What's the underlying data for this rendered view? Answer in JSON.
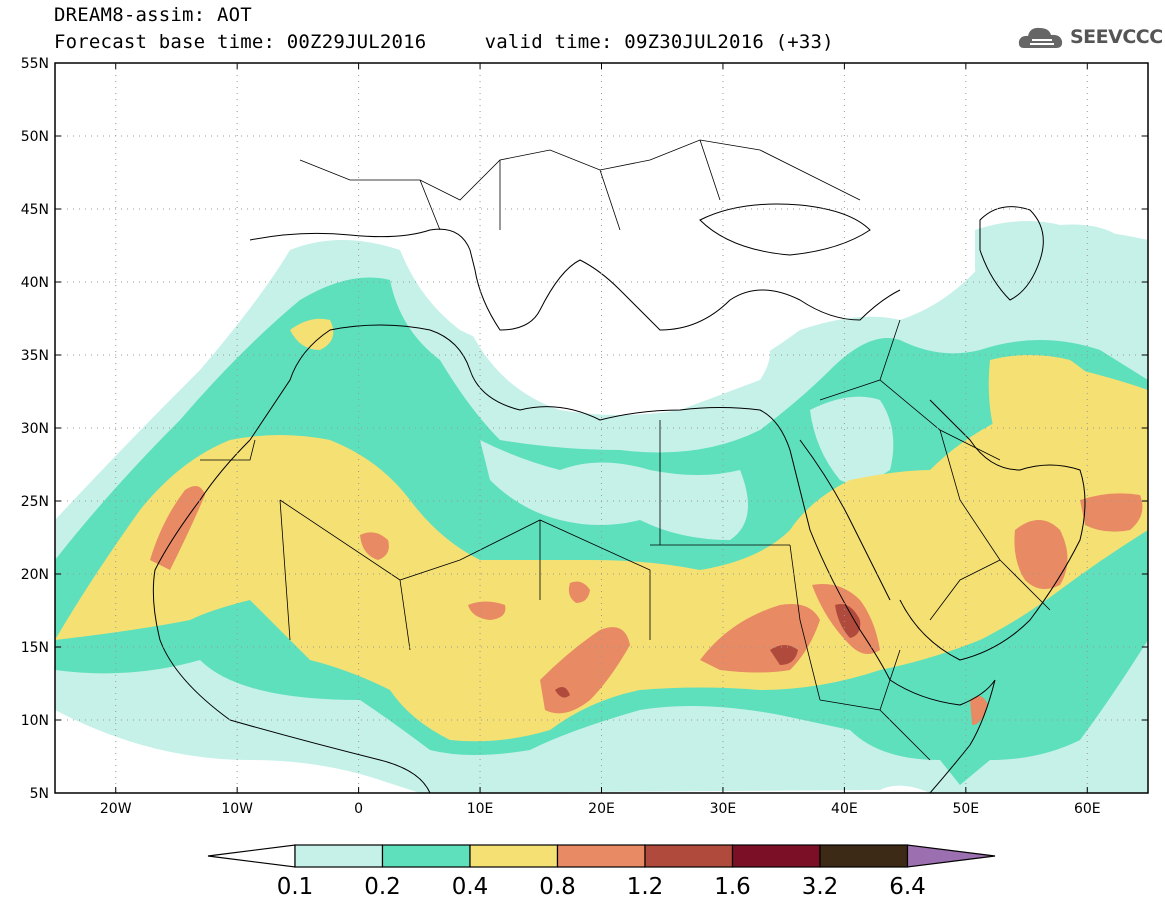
{
  "header": {
    "title": "DREAM8-assim: AOT",
    "forecast_line": "Forecast base time: 00Z29JUL2016     valid time: 09Z30JUL2016 (+33)",
    "logo_text": "SEEVCCC"
  },
  "map": {
    "lon_range": [
      -25,
      65
    ],
    "lat_range": [
      5,
      55
    ],
    "lat_ticks": [
      "55N",
      "50N",
      "45N",
      "40N",
      "35N",
      "30N",
      "25N",
      "20N",
      "15N",
      "10N",
      "5N"
    ],
    "lon_ticks": [
      "20W",
      "10W",
      "0",
      "10E",
      "20E",
      "30E",
      "40E",
      "50E",
      "60E"
    ],
    "background": "#ffffff"
  },
  "legend": {
    "labels": [
      "0.1",
      "0.2",
      "0.4",
      "0.8",
      "1.2",
      "1.6",
      "3.2",
      "6.4"
    ],
    "colors": [
      "#c5f1e8",
      "#5ee0bc",
      "#f5e073",
      "#e88a64",
      "#b04a3c",
      "#7a0f26",
      "#3d2a16",
      "#9b6fb0"
    ]
  },
  "colors": {
    "level_01": "#c5f1e8",
    "level_02": "#5ee0bc",
    "level_04": "#f5e073",
    "level_08": "#e88a64",
    "level_12": "#b04a3c"
  }
}
